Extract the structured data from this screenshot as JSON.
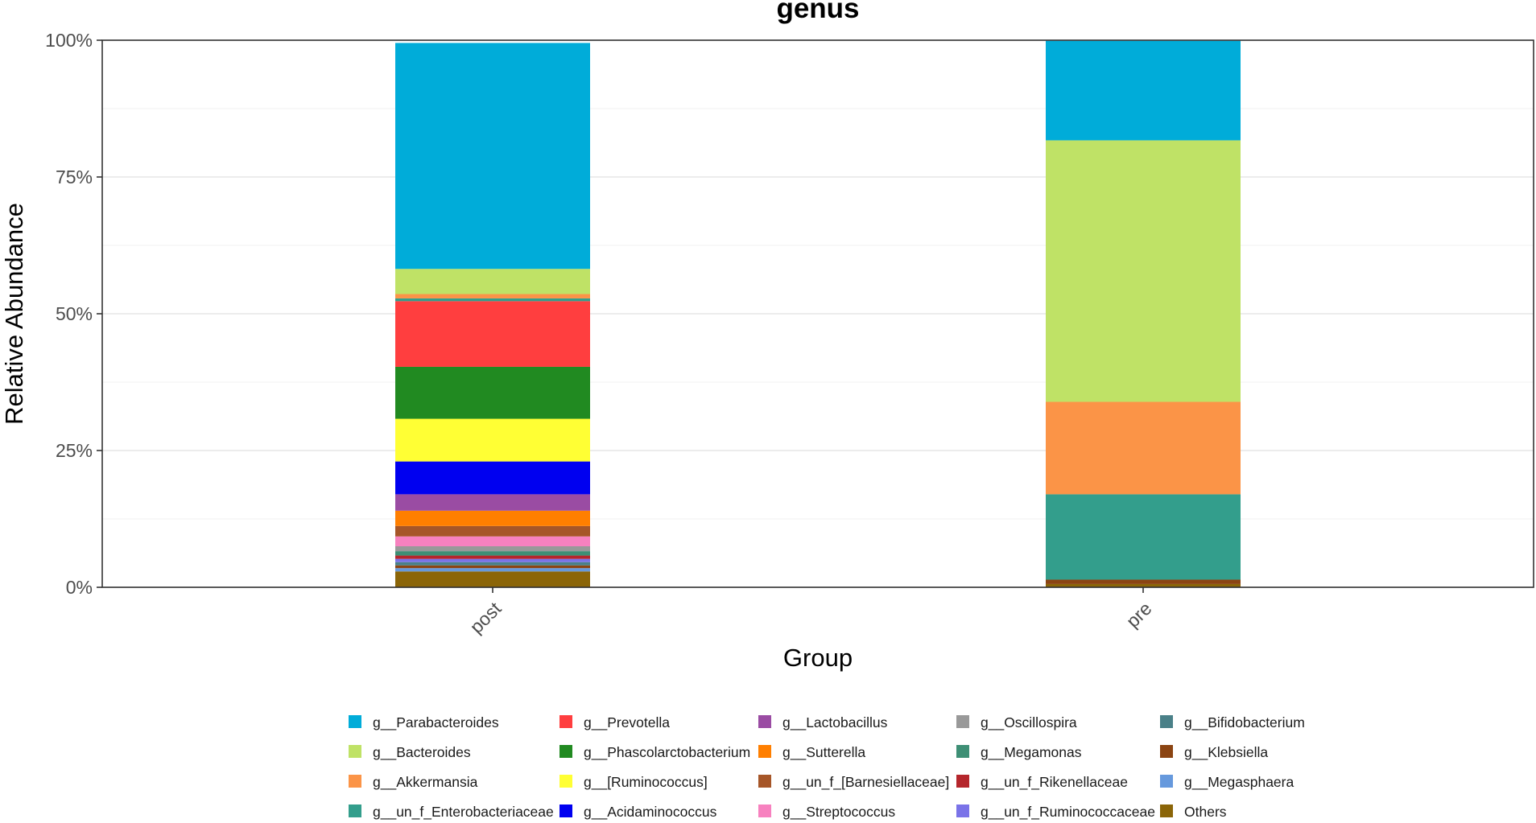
{
  "chart_data": {
    "type": "bar",
    "stacked": true,
    "title": "genus",
    "xlabel": "Group",
    "ylabel": "Relative Abundance",
    "ylim": [
      0,
      100
    ],
    "yticks": [
      0,
      25,
      50,
      75,
      100
    ],
    "ytick_labels": [
      "0%",
      "25%",
      "50%",
      "75%",
      "100%"
    ],
    "categories": [
      "post",
      "pre"
    ],
    "legend_position": "bottom",
    "legend_columns": 5,
    "series": [
      {
        "name": "g__Parabacteroides",
        "color": "#00ACD9",
        "values": [
          41.3,
          18.2
        ]
      },
      {
        "name": "g__Bacteroides",
        "color": "#BFE266",
        "values": [
          4.6,
          47.8
        ]
      },
      {
        "name": "g__Akkermansia",
        "color": "#FB9447",
        "values": [
          0.8,
          16.9
        ]
      },
      {
        "name": "g__un_f_Enterobacteriaceae",
        "color": "#339E8C",
        "values": [
          0.5,
          15.6
        ]
      },
      {
        "name": "g__Prevotella",
        "color": "#FF3E3F",
        "values": [
          12.0,
          0.0
        ]
      },
      {
        "name": "g__Phascolarctobacterium",
        "color": "#218A21",
        "values": [
          9.5,
          0.0
        ]
      },
      {
        "name": "g__[Ruminococcus]",
        "color": "#FFFF34",
        "values": [
          7.8,
          0.0
        ]
      },
      {
        "name": "g__Acidaminococcus",
        "color": "#0000F0",
        "values": [
          6.0,
          0.0
        ]
      },
      {
        "name": "g__Lactobacillus",
        "color": "#9A4CA3",
        "values": [
          3.0,
          0.0
        ]
      },
      {
        "name": "g__Sutterella",
        "color": "#FF7F00",
        "values": [
          2.8,
          0.0
        ]
      },
      {
        "name": "g__un_f_[Barnesiellaceae]",
        "color": "#A65628",
        "values": [
          1.9,
          0.0
        ]
      },
      {
        "name": "g__Streptococcus",
        "color": "#F781BF",
        "values": [
          1.8,
          0.0
        ]
      },
      {
        "name": "g__Oscillospira",
        "color": "#999999",
        "values": [
          0.9,
          0.0
        ]
      },
      {
        "name": "g__Megamonas",
        "color": "#3E8F75",
        "values": [
          0.8,
          0.0
        ]
      },
      {
        "name": "g__un_f_Rikenellaceae",
        "color": "#B5262C",
        "values": [
          0.6,
          0.0
        ]
      },
      {
        "name": "g__un_f_Ruminococcaceae",
        "color": "#7A73E8",
        "values": [
          0.6,
          0.0
        ]
      },
      {
        "name": "g__Bifidobacterium",
        "color": "#4A8088",
        "values": [
          0.6,
          0.0
        ]
      },
      {
        "name": "g__Klebsiella",
        "color": "#8B4412",
        "values": [
          0.5,
          0.8
        ]
      },
      {
        "name": "g__Megasphaera",
        "color": "#6699DD",
        "values": [
          0.6,
          0.0
        ]
      },
      {
        "name": "Others",
        "color": "#8B6508",
        "values": [
          2.9,
          0.6
        ]
      }
    ]
  }
}
